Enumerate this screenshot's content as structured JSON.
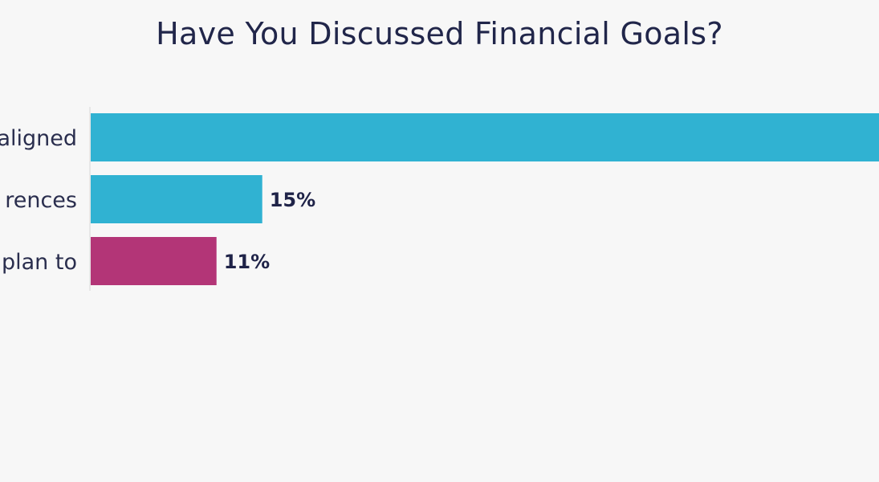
{
  "chart_data": {
    "type": "bar",
    "orientation": "horizontal",
    "title": "Have You Discussed Financial Goals?",
    "categories": [
      "aligned",
      "rences",
      "plan to"
    ],
    "values": [
      null,
      15,
      11
    ],
    "value_labels": [
      "",
      "15%",
      "11%"
    ],
    "colors": [
      "#30b2d2",
      "#30b2d2",
      "#b33577"
    ],
    "xlim": [
      0,
      69
    ],
    "grid": false,
    "legend": "none"
  }
}
